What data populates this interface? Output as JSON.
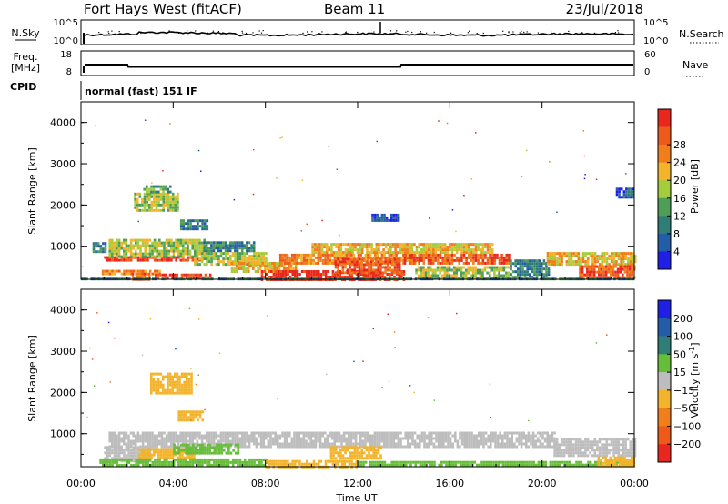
{
  "header": {
    "station": "Fort Hays West (fitACF)",
    "beam": "Beam 11",
    "date": "23/Jul/2018"
  },
  "noise_panel": {
    "left_label": "N.Sky",
    "right_label": "N.Search",
    "ticks_left": [
      "10^5",
      "10^0"
    ],
    "ticks_right": [
      "10^5",
      "10^0"
    ]
  },
  "freq_panel": {
    "left_label_top": "Freq.",
    "left_label_bottom": "[MHz]",
    "right_label": "Nave",
    "ticks_left": [
      "18",
      "8"
    ],
    "ticks_right": [
      "60",
      "0"
    ]
  },
  "cpid_panel": {
    "left_label": "CPID",
    "mode_text": "normal (fast) 151 IF"
  },
  "chart_data": [
    {
      "type": "heatmap",
      "name": "power",
      "ylabel": "Slant Range [km]",
      "y_ticks": [
        "1000",
        "2000",
        "3000",
        "4000"
      ],
      "ylim": [
        200,
        4500
      ],
      "x_ticks": [
        "00:00",
        "04:00",
        "08:00",
        "12:00",
        "16:00",
        "20:00",
        "00:00"
      ],
      "xlim_hours": [
        0,
        24
      ],
      "colorbar": {
        "label": "Power [dB]",
        "ticks": [
          "4",
          "8",
          "12",
          "16",
          "20",
          "24",
          "28"
        ],
        "colors": [
          "#1f1fe6",
          "#235da8",
          "#2f7d77",
          "#4f9e58",
          "#a5cc3c",
          "#f3b32a",
          "#f07e1b",
          "#ed5a1a",
          "#e8281e"
        ]
      },
      "regions": [
        {
          "t0": 1.0,
          "t1": 5.4,
          "r0": 650,
          "r1": 760,
          "level": 8
        },
        {
          "t0": 1.2,
          "t1": 5.4,
          "r0": 760,
          "r1": 1180,
          "level": 4
        },
        {
          "t0": 0.5,
          "t1": 1.1,
          "r0": 900,
          "r1": 1100,
          "level": 2
        },
        {
          "t0": 0.9,
          "t1": 3.4,
          "r0": 330,
          "r1": 430,
          "level": 6
        },
        {
          "t0": 2.2,
          "t1": 3.0,
          "r0": 220,
          "r1": 360,
          "level": 7
        },
        {
          "t0": 3.2,
          "t1": 5.6,
          "r0": 240,
          "r1": 340,
          "level": 8
        },
        {
          "t0": 2.3,
          "t1": 4.2,
          "r0": 1880,
          "r1": 2300,
          "level": 4
        },
        {
          "t0": 2.7,
          "t1": 3.9,
          "r0": 2300,
          "r1": 2480,
          "level": 3
        },
        {
          "t0": 4.3,
          "t1": 5.5,
          "r0": 1400,
          "r1": 1650,
          "level": 2
        },
        {
          "t0": 5.3,
          "t1": 7.5,
          "r0": 870,
          "r1": 1120,
          "level": 2
        },
        {
          "t0": 4.9,
          "t1": 8.0,
          "r0": 560,
          "r1": 860,
          "level": 4
        },
        {
          "t0": 6.5,
          "t1": 9.3,
          "r0": 380,
          "r1": 620,
          "level": 5
        },
        {
          "t0": 7.8,
          "t1": 14.0,
          "r0": 220,
          "r1": 420,
          "level": 8
        },
        {
          "t0": 8.6,
          "t1": 14.5,
          "r0": 560,
          "r1": 820,
          "level": 6
        },
        {
          "t0": 10.0,
          "t1": 14.4,
          "r0": 820,
          "r1": 1080,
          "level": 5
        },
        {
          "t0": 11.0,
          "t1": 13.8,
          "r0": 380,
          "r1": 720,
          "level": 7
        },
        {
          "t0": 12.6,
          "t1": 13.8,
          "r0": 1600,
          "r1": 1790,
          "level": 1
        },
        {
          "t0": 14.0,
          "t1": 18.6,
          "r0": 560,
          "r1": 820,
          "level": 7
        },
        {
          "t0": 14.0,
          "t1": 17.8,
          "r0": 820,
          "r1": 1080,
          "level": 5
        },
        {
          "t0": 14.5,
          "t1": 18.6,
          "r0": 220,
          "r1": 520,
          "level": 4
        },
        {
          "t0": 18.6,
          "t1": 20.3,
          "r0": 220,
          "r1": 680,
          "level": 2
        },
        {
          "t0": 20.2,
          "t1": 24.0,
          "r0": 550,
          "r1": 860,
          "level": 5
        },
        {
          "t0": 21.6,
          "t1": 24.0,
          "r0": 220,
          "r1": 540,
          "level": 7
        },
        {
          "t0": 0.0,
          "t1": 24.0,
          "r0": 180,
          "r1": 240,
          "level": 2
        },
        {
          "t0": 23.2,
          "t1": 24.0,
          "r0": 2200,
          "r1": 2420,
          "level": 1
        }
      ]
    },
    {
      "type": "heatmap",
      "name": "velocity",
      "ylabel": "Slant Range [km]",
      "y_ticks": [
        "1000",
        "2000",
        "3000",
        "4000"
      ],
      "ylim": [
        200,
        4500
      ],
      "x_ticks": [
        "00:00",
        "04:00",
        "08:00",
        "12:00",
        "16:00",
        "20:00",
        "00:00"
      ],
      "xlim_hours": [
        0,
        24
      ],
      "xlabel": "Time UT",
      "colorbar": {
        "label": "Velocity [m s^-1]",
        "ticks": [
          "200",
          "100",
          "50",
          "15",
          "-15",
          "-50",
          "-100",
          "-200"
        ],
        "colors": [
          "#1f1fe6",
          "#235da8",
          "#2f7d77",
          "#66bd3a",
          "#bdbdbd",
          "#f3b32a",
          "#f07e1b",
          "#ed5a1a",
          "#e8281e"
        ]
      },
      "regions": [
        {
          "t0": 1.2,
          "t1": 20.5,
          "r0": 700,
          "r1": 1050,
          "level": 4
        },
        {
          "t0": 20.5,
          "t1": 24.0,
          "r0": 450,
          "r1": 900,
          "level": 4
        },
        {
          "t0": 1.0,
          "t1": 3.0,
          "r0": 350,
          "r1": 700,
          "level": 4
        },
        {
          "t0": 2.5,
          "t1": 5.0,
          "r0": 400,
          "r1": 650,
          "level": 5
        },
        {
          "t0": 4.0,
          "t1": 6.8,
          "r0": 560,
          "r1": 760,
          "level": 3
        },
        {
          "t0": 3.0,
          "t1": 4.8,
          "r0": 2000,
          "r1": 2480,
          "level": 5
        },
        {
          "t0": 4.2,
          "t1": 5.3,
          "r0": 1300,
          "r1": 1560,
          "level": 5
        },
        {
          "t0": 0.8,
          "t1": 8.0,
          "r0": 220,
          "r1": 400,
          "level": 3
        },
        {
          "t0": 8.0,
          "t1": 12.0,
          "r0": 220,
          "r1": 360,
          "level": 5
        },
        {
          "t0": 12.0,
          "t1": 24.0,
          "r0": 220,
          "r1": 340,
          "level": 3
        },
        {
          "t0": 10.8,
          "t1": 13.0,
          "r0": 400,
          "r1": 700,
          "level": 5
        },
        {
          "t0": 22.4,
          "t1": 24.0,
          "r0": 220,
          "r1": 450,
          "level": 5
        }
      ]
    }
  ]
}
